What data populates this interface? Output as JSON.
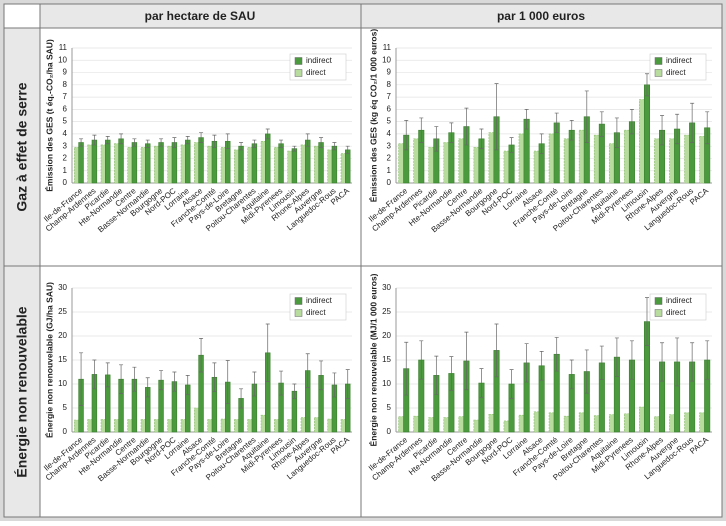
{
  "column_headers": [
    "par hectare de SAU",
    "par 1 000 euros"
  ],
  "row_headers": [
    "Gaz à effet de serre",
    "Énergie non renouvelable"
  ],
  "chart_data": [
    {
      "type": "bar",
      "y_label": "Émission des GES (t éq.-CO₂/ha SAU)",
      "categories": [
        "Ile-de-France",
        "Champ-Ardennes",
        "Picardie",
        "Hte-Normandie",
        "Centre",
        "Basse-Normandie",
        "Bourgogne",
        "Nord-POC",
        "Lorraine",
        "Alsace",
        "Franche-Comté",
        "Pays-de-Loire",
        "Bretagne",
        "Poitou-Charentes",
        "Aquitaine",
        "Midi-Pyrenees",
        "Limousin",
        "Rhone-Alpes",
        "Auvergne",
        "Languedoc-Rous",
        "PACA"
      ],
      "series": [
        {
          "name": "direct",
          "color": "#b7dc9e",
          "values": [
            2.9,
            3.1,
            3.1,
            3.2,
            2.9,
            2.9,
            3.0,
            3.0,
            3.1,
            3.3,
            3.0,
            2.9,
            2.7,
            2.9,
            3.4,
            2.9,
            2.6,
            3.1,
            3.0,
            2.7,
            2.4
          ]
        },
        {
          "name": "indirect",
          "color": "#4c9a3e",
          "values": [
            3.3,
            3.5,
            3.5,
            3.6,
            3.3,
            3.2,
            3.3,
            3.3,
            3.5,
            3.7,
            3.4,
            3.4,
            3.0,
            3.2,
            4.0,
            3.2,
            2.8,
            3.5,
            3.3,
            3.0,
            2.7
          ],
          "errors": [
            0.3,
            0.4,
            0.3,
            0.4,
            0.3,
            0.3,
            0.3,
            0.4,
            0.3,
            0.4,
            0.5,
            0.6,
            0.3,
            0.3,
            0.4,
            0.3,
            0.2,
            0.5,
            0.4,
            0.3,
            0.3
          ]
        }
      ],
      "ylim": [
        0,
        11
      ],
      "yticks": [
        0,
        1,
        2,
        3,
        4,
        5,
        6,
        7,
        8,
        9,
        10,
        11
      ],
      "grid": true,
      "legend": "top-right"
    },
    {
      "type": "bar",
      "y_label": "Émission des GES (kg éq CO₂/1 000 euros)",
      "categories": [
        "Ile-de-France",
        "Champ-Ardennes",
        "Picardie",
        "Hte-Normandie",
        "Centre",
        "Basse-Normandie",
        "Bourgogne",
        "Nord-POC",
        "Lorraine",
        "Alsace",
        "Franche-Comté",
        "Pays-de-Loire",
        "Bretagne",
        "Poitou-Charentes",
        "Aquitaine",
        "Midi-Pyrenees",
        "Limousin",
        "Rhone-Alpes",
        "Auvergne",
        "Languedoc-Rous",
        "PACA"
      ],
      "series": [
        {
          "name": "direct",
          "color": "#b7dc9e",
          "values": [
            3.2,
            3.6,
            2.9,
            3.3,
            3.6,
            2.9,
            4.1,
            2.6,
            4.0,
            2.6,
            4.0,
            3.6,
            4.3,
            3.9,
            3.2,
            4.3,
            6.8,
            3.6,
            3.6,
            3.9,
            3.8
          ]
        },
        {
          "name": "indirect",
          "color": "#4c9a3e",
          "values": [
            3.9,
            4.3,
            3.6,
            4.1,
            4.6,
            3.6,
            5.4,
            3.1,
            5.2,
            3.2,
            4.9,
            4.3,
            5.4,
            4.8,
            4.1,
            5.0,
            8.0,
            4.3,
            4.4,
            4.9,
            4.5
          ],
          "errors": [
            1.2,
            1.0,
            1.0,
            0.8,
            1.5,
            0.8,
            2.7,
            0.6,
            0.8,
            0.8,
            0.8,
            0.8,
            2.1,
            1.0,
            1.2,
            1.0,
            0.9,
            1.2,
            1.2,
            1.6,
            1.3
          ]
        }
      ],
      "ylim": [
        0,
        11
      ],
      "yticks": [
        0,
        1,
        2,
        3,
        4,
        5,
        6,
        7,
        8,
        9,
        10,
        11
      ],
      "grid": true,
      "legend": "top-right"
    },
    {
      "type": "bar",
      "y_label": "Énergie non renouvelable (GJ/ha SAU)",
      "categories": [
        "Ile-de-France",
        "Champ-Ardennes",
        "Picardie",
        "Hte-Normandie",
        "Centre",
        "Basse-Normandie",
        "Bourgogne",
        "Nord-POC",
        "Lorraine",
        "Alsace",
        "Franche-Comté",
        "Pays-de-Loire",
        "Bretagne",
        "Poitou-Charentes",
        "Aquitaine",
        "Midi-Pyrenees",
        "Limousin",
        "Rhone-Alpes",
        "Auvergne",
        "Languedoc-Rous",
        "PACA"
      ],
      "series": [
        {
          "name": "direct",
          "color": "#b7dc9e",
          "values": [
            2.5,
            2.6,
            2.6,
            2.6,
            2.6,
            2.6,
            2.6,
            2.6,
            2.6,
            5.0,
            2.6,
            2.7,
            2.6,
            2.6,
            3.5,
            2.6,
            2.6,
            3.0,
            3.0,
            2.7,
            2.6
          ]
        },
        {
          "name": "indirect",
          "color": "#4c9a3e",
          "values": [
            11.0,
            12.0,
            11.9,
            11.0,
            11.0,
            9.3,
            10.8,
            10.5,
            9.8,
            16.0,
            11.4,
            10.4,
            7.0,
            10.0,
            16.5,
            10.2,
            8.5,
            12.8,
            11.8,
            9.8,
            10.0
          ],
          "errors": [
            5.5,
            3.0,
            2.5,
            3.0,
            2.5,
            2.0,
            2.0,
            2.0,
            2.0,
            3.5,
            3.0,
            4.5,
            2.0,
            2.5,
            6.0,
            2.5,
            1.5,
            3.5,
            3.0,
            2.5,
            3.0
          ]
        }
      ],
      "ylim": [
        0,
        30
      ],
      "yticks": [
        0,
        5,
        10,
        15,
        20,
        25,
        30
      ],
      "grid": true,
      "legend": "top-right"
    },
    {
      "type": "bar",
      "y_label": "Énergie non renouvelable (MJ/1 000 euros)",
      "categories": [
        "Ile-de-France",
        "Champ-Ardennes",
        "Picardie",
        "Hte-Normandie",
        "Centre",
        "Basse-Normandie",
        "Bourgogne",
        "Nord-POC",
        "Lorraine",
        "Alsace",
        "Franche-Comté",
        "Pays-de-Loire",
        "Bretagne",
        "Poitou-Charentes",
        "Aquitaine",
        "Midi-Pyrenees",
        "Limousin",
        "Rhone-Alpes",
        "Auvergne",
        "Languedoc-Rous",
        "PACA"
      ],
      "series": [
        {
          "name": "direct",
          "color": "#b7dc9e",
          "values": [
            3.2,
            3.3,
            3.0,
            3.0,
            3.2,
            2.5,
            3.7,
            2.3,
            3.5,
            4.2,
            4.0,
            3.3,
            4.0,
            3.4,
            3.6,
            3.8,
            5.2,
            3.2,
            3.6,
            4.0,
            4.0
          ]
        },
        {
          "name": "indirect",
          "color": "#4c9a3e",
          "values": [
            13.2,
            15.0,
            11.8,
            12.2,
            14.8,
            10.2,
            17.0,
            10.0,
            14.4,
            13.8,
            16.2,
            12.0,
            12.6,
            14.4,
            15.6,
            15.0,
            23.0,
            14.6,
            14.6,
            14.6,
            15.0
          ],
          "errors": [
            5.5,
            4.0,
            4.0,
            3.5,
            6.0,
            3.0,
            5.5,
            3.0,
            4.0,
            3.0,
            3.5,
            3.0,
            4.5,
            3.5,
            4.0,
            4.0,
            5.0,
            4.0,
            5.0,
            4.0,
            4.0
          ]
        }
      ],
      "ylim": [
        0,
        30
      ],
      "yticks": [
        0,
        5,
        10,
        15,
        20,
        25,
        30
      ],
      "grid": true,
      "legend": "top-right"
    }
  ]
}
